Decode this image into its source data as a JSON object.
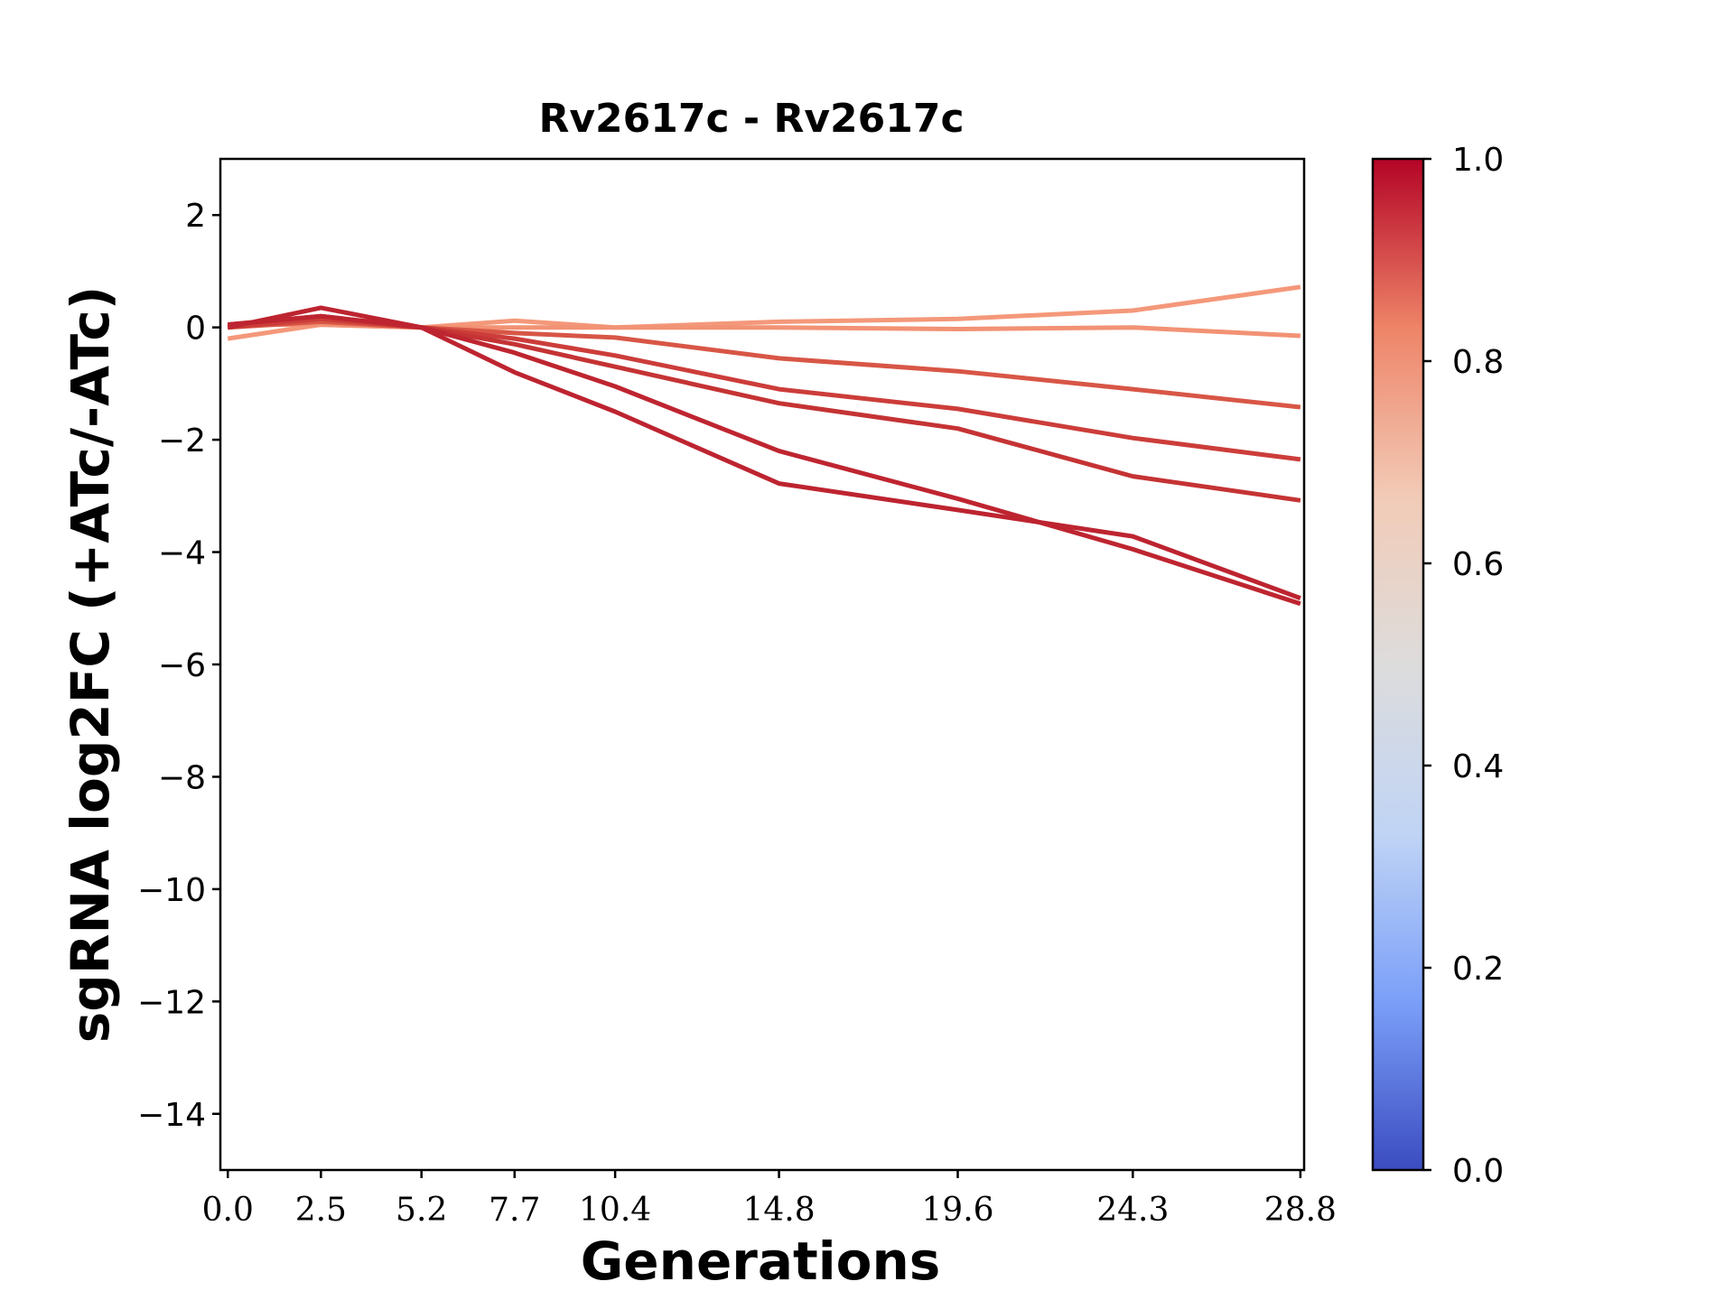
{
  "chart_data": {
    "type": "line",
    "title": "Rv2617c - Rv2617c",
    "xlabel": "Generations",
    "ylabel": "sgRNA log2FC (+ATc/-ATc)",
    "x": [
      0.0,
      2.5,
      5.2,
      7.7,
      10.4,
      14.8,
      19.6,
      24.3,
      28.8
    ],
    "x_tick_labels": [
      "0.0",
      "2.5",
      "5.2",
      "7.7",
      "10.4",
      "14.8",
      "19.6",
      "24.3",
      "28.8"
    ],
    "xlim": [
      -0.2,
      28.9
    ],
    "ylim": [
      -15,
      3
    ],
    "y_ticks": [
      2,
      0,
      -2,
      -4,
      -6,
      -8,
      -10,
      -12,
      -14
    ],
    "grid": false,
    "series": [
      {
        "values": [
          -0.2,
          0.05,
          0.0,
          0.12,
          0.0,
          0.1,
          0.15,
          0.3,
          0.72
        ],
        "color": "#f4987a"
      },
      {
        "values": [
          0.05,
          0.05,
          0.0,
          0.0,
          0.0,
          0.0,
          -0.03,
          0.0,
          -0.15
        ],
        "color": "#f29274"
      },
      {
        "values": [
          0.0,
          0.1,
          0.0,
          -0.1,
          -0.18,
          -0.55,
          -0.78,
          -1.1,
          -1.42
        ],
        "color": "#d85646"
      },
      {
        "values": [
          0.0,
          0.15,
          0.0,
          -0.2,
          -0.5,
          -1.1,
          -1.45,
          -1.97,
          -2.35
        ],
        "color": "#cc3d3a"
      },
      {
        "values": [
          0.05,
          0.2,
          0.0,
          -0.3,
          -0.7,
          -1.35,
          -1.8,
          -2.65,
          -3.08
        ],
        "color": "#c53334"
      },
      {
        "values": [
          0.05,
          0.2,
          0.0,
          -0.45,
          -1.05,
          -2.2,
          -3.05,
          -3.95,
          -4.92
        ],
        "color": "#be2530"
      },
      {
        "values": [
          0.0,
          0.35,
          0.0,
          -0.8,
          -1.5,
          -2.78,
          -3.25,
          -3.72,
          -4.82
        ],
        "color": "#bd2430"
      }
    ],
    "colorbar": {
      "range": [
        0.0,
        1.0
      ],
      "ticks": [
        "0.0",
        "0.2",
        "0.4",
        "0.6",
        "0.8",
        "1.0"
      ],
      "colormap": [
        "#3b4cc0",
        "#7b9ff9",
        "#c0d4f5",
        "#dddcdc",
        "#f2cbb7",
        "#ee8468",
        "#b40426"
      ]
    }
  }
}
